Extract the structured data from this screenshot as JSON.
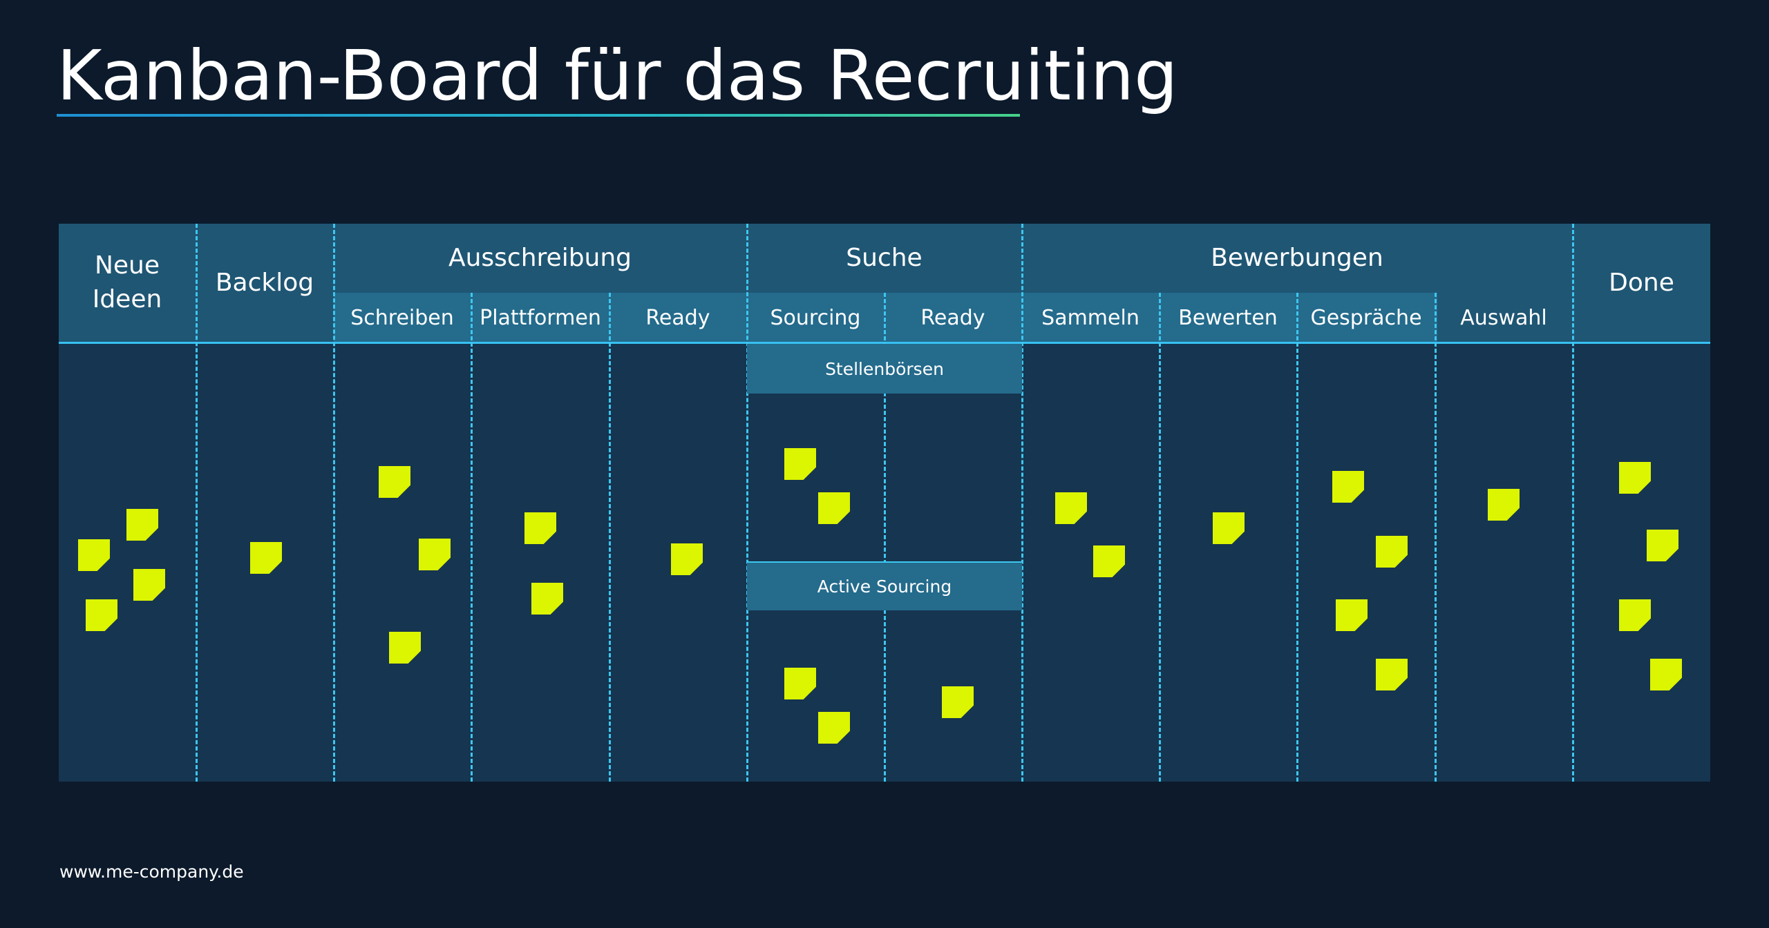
{
  "title": "Kanban-Board für das Recruiting",
  "footer_url": "www.me-company.de",
  "colors": {
    "background": "#0c1a2b",
    "board": "#163550",
    "header": "#1f5674",
    "subheader": "#246b8c",
    "divider": "#3ec7f0",
    "sticky_note": "#dcf500"
  },
  "board": {
    "columns": {
      "neue_ideen": "Neue Ideen",
      "backlog": "Backlog",
      "done": "Done"
    },
    "groups": {
      "ausschreibung": {
        "label": "Ausschreibung",
        "subs": [
          "Schreiben",
          "Plattformen",
          "Ready"
        ]
      },
      "suche": {
        "label": "Suche",
        "subs": [
          "Sourcing",
          "Ready"
        ]
      },
      "bewerbungen": {
        "label": "Bewerbungen",
        "subs": [
          "Sammeln",
          "Bewerten",
          "Gespräche",
          "Auswahl"
        ]
      }
    },
    "swimlanes": [
      "Stellenbörsen",
      "Active Sourcing"
    ]
  }
}
